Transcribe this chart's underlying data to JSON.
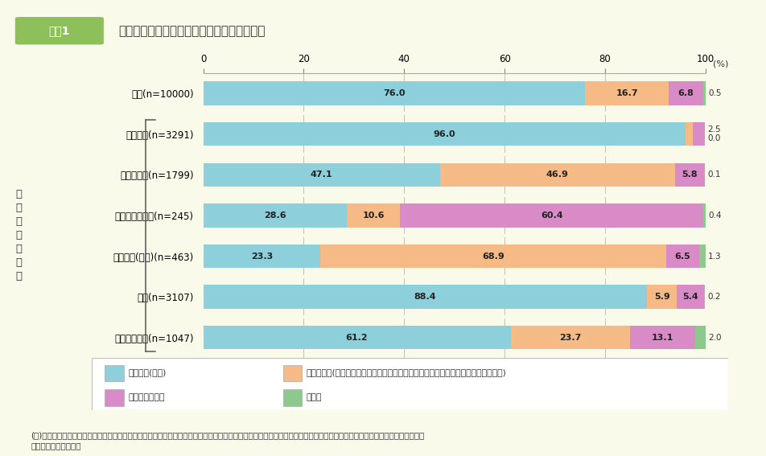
{
  "title": "現在の就学・就業状況別の希望する雇用形態",
  "header_label": "図表1",
  "ylabel_rotated": "現\n在\nの\n雇\n用\n形\n態",
  "categories": [
    "全体(n=10000)",
    "正規雇用(n=3291)",
    "非正規雇用(n=1799)",
    "自営業・自由業(n=245)",
    "専業主婦(主夫)(n=463)",
    "学生(n=3107)",
    "働いていない(n=1047)"
  ],
  "segments": {
    "正規雇用(常勤)": [
      76.0,
      96.0,
      47.1,
      28.6,
      23.3,
      88.4,
      61.2
    ],
    "非正規雇用": [
      16.7,
      1.4,
      46.9,
      10.6,
      68.9,
      5.9,
      23.7
    ],
    "自営業・自由業": [
      6.8,
      2.5,
      5.8,
      60.4,
      6.5,
      5.4,
      13.1
    ],
    "その他": [
      0.5,
      0.0,
      0.1,
      0.4,
      1.3,
      0.2,
      2.0
    ]
  },
  "outside_labels": {
    "正規雇用(常勤)": [
      "0.5",
      "2.5\n0.0",
      "0.1",
      "0.4",
      "1.3",
      "0.2",
      "2.0"
    ]
  },
  "colors": {
    "正規雇用(常勤)": "#8ECFDC",
    "非正規雇用": "#F5BA85",
    "自営業・自由業": "#D98BC8",
    "その他": "#8DC98D"
  },
  "legend_labels": [
    [
      "正規雇用(常勤)",
      "非正規雇用(パート、アルバイト、労働者派遣事業所の派遣社員、契約社員、嘱託等)"
    ],
    [
      "自営業・自由業",
      "その他"
    ]
  ],
  "legend_keys": [
    [
      "正規雇用(常勤)",
      "非正規雇用"
    ],
    [
      "自営業・自由業",
      "その他"
    ]
  ],
  "background_color": "#FAFAEB",
  "xlim": [
    0,
    100
  ],
  "note": "(注)「あなたが、現在、最も希望する雇用の形態等を教えてください。（就業していない方も、現在就業するとした場合に希望する雇用の形態をお答えください。）」との問\n　　いに対する回答。"
}
